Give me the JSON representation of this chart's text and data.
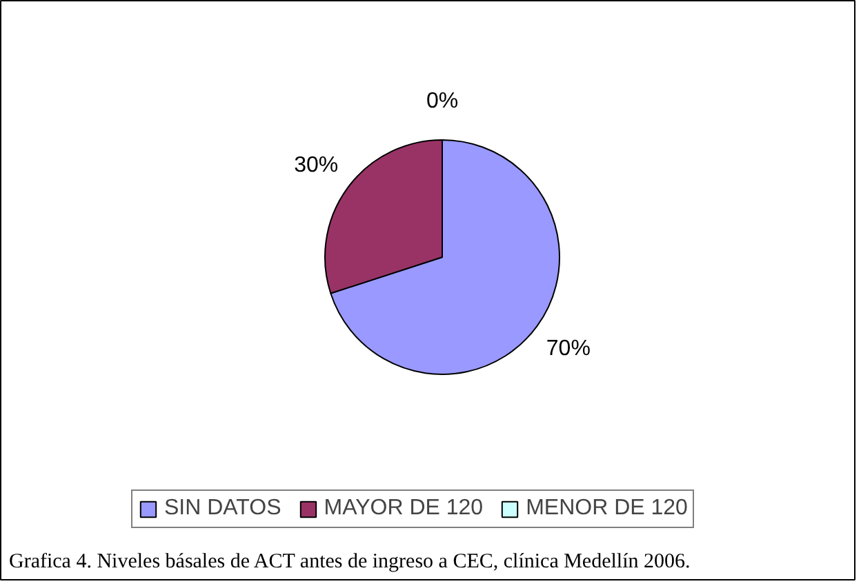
{
  "chart_data": {
    "type": "pie",
    "categories": [
      "SIN DATOS",
      "MAYOR DE 120",
      "MENOR DE 120"
    ],
    "values": [
      70,
      30,
      0
    ],
    "colors": [
      "#9999ff",
      "#993366",
      "#ccffff"
    ],
    "value_labels": [
      "70%",
      "30%",
      "0%"
    ],
    "legend": "bottom",
    "annotations": [
      "Grafica 4. Niveles básales de ACT antes de ingreso a CEC, clínica Medellín 2006."
    ]
  }
}
